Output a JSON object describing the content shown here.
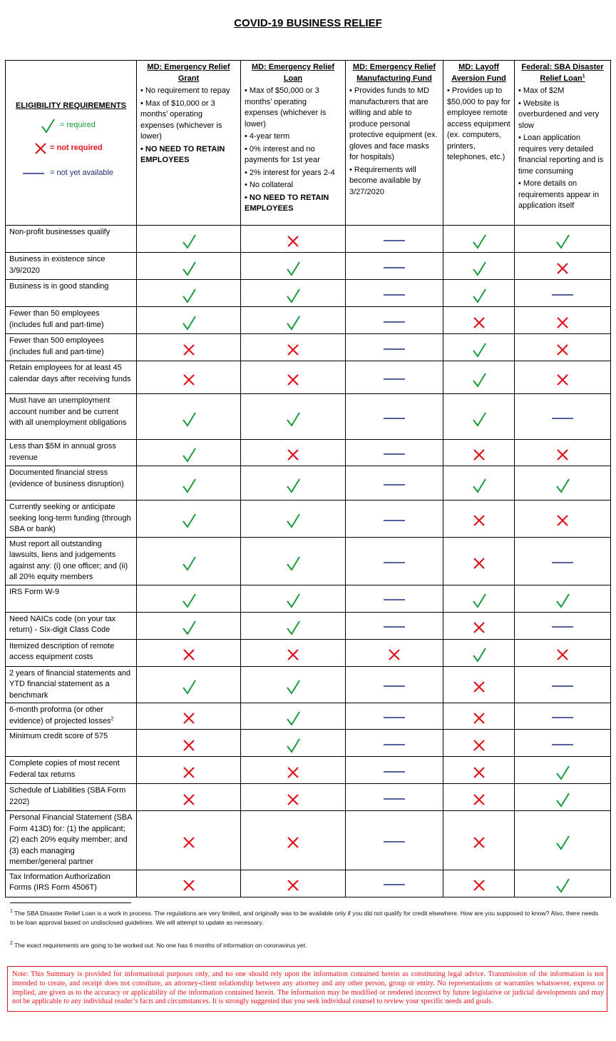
{
  "title": "COVID-19 BUSINESS RELIEF",
  "legend": {
    "heading": "ELIGIBILITY REQUIREMENTS",
    "required": "= required",
    "not_required": "= not required",
    "not_available": "= not yet available"
  },
  "programs": [
    {
      "title1": "MD: Emergency Relief",
      "title2": "Grant",
      "sup": "",
      "bullets": [
        "No requirement to repay",
        "Max of $10,000 or 3 months’ operating expenses (whichever is lower)"
      ],
      "bold_bullet": "NO NEED TO RETAIN EMPLOYEES"
    },
    {
      "title1": "MD: Emergency Relief",
      "title2": "Loan",
      "sup": "",
      "bullets": [
        "Max of $50,000 or 3 months’ operating expenses (whichever is lower)",
        "4-year term",
        "0% interest and no payments for 1st year",
        "2% interest for years 2-4",
        "No collateral"
      ],
      "bold_bullet": "NO NEED TO RETAIN EMPLOYEES"
    },
    {
      "title1": "MD: Emergency Relief",
      "title2": "Manufacturing Fund",
      "sup": "",
      "bullets": [
        "Provides funds to MD manufacturers that are willing and able to produce personal protective equipment (ex. gloves and face masks for hospitals)",
        "Requirements will become available by 3/27/2020"
      ],
      "bold_bullet": ""
    },
    {
      "title1": "MD: Layoff",
      "title2": "Aversion Fund",
      "sup": "",
      "bullets": [
        "Provides up to $50,000 to pay for employee remote access equipment (ex. computers, printers, telephones, etc.)"
      ],
      "bold_bullet": ""
    },
    {
      "title1": "Federal: SBA Disaster",
      "title2": "Relief Loan",
      "sup": "1",
      "bullets": [
        "Max of $2M",
        "Website is overburdened and very slow",
        "Loan application requires very detailed financial reporting and is time consuming",
        "More details on requirements appear in application itself"
      ],
      "bold_bullet": ""
    }
  ],
  "rows": [
    {
      "label": "Non-profit businesses qualify",
      "marks": [
        "check",
        "x",
        "dash",
        "check",
        "check"
      ]
    },
    {
      "label": "Business in existence since 3/9/2020",
      "marks": [
        "check",
        "check",
        "dash",
        "check",
        "x"
      ]
    },
    {
      "label": "Business is in good standing",
      "marks": [
        "check",
        "check",
        "dash",
        "check",
        "dash"
      ]
    },
    {
      "label": "Fewer than 50 employees (includes full and part-time)",
      "marks": [
        "check",
        "check",
        "dash",
        "x",
        "x"
      ]
    },
    {
      "label": "Fewer than 500 employees (includes full and part-time)",
      "marks": [
        "x",
        "x",
        "dash",
        "check",
        "x"
      ]
    },
    {
      "label": "Retain employees for at least 45 calendar days after receiving funds",
      "marks": [
        "x",
        "x",
        "dash",
        "check",
        "x"
      ]
    },
    {
      "label": "Must have an unemployment account number and be current with all unemployment obligations",
      "marks": [
        "check",
        "check",
        "dash",
        "check",
        "dash"
      ]
    },
    {
      "label": "Less than $5M in annual gross revenue",
      "marks": [
        "check",
        "x",
        "dash",
        "x",
        "x"
      ]
    },
    {
      "label": "Documented financial stress (evidence of business disruption)",
      "marks": [
        "check",
        "check",
        "dash",
        "check",
        "check"
      ]
    },
    {
      "label": "Currently seeking or anticipate seeking long-term funding (through SBA or bank)",
      "marks": [
        "check",
        "check",
        "dash",
        "x",
        "x"
      ]
    },
    {
      "label": "Must report all outstanding lawsuits, liens and judgements against any: (i) one officer; and (ii) all 20% equity members",
      "marks": [
        "check",
        "check",
        "dash",
        "x",
        "dash"
      ]
    },
    {
      "label": "IRS Form W-9",
      "marks": [
        "check",
        "check",
        "dash",
        "check",
        "check"
      ]
    },
    {
      "label": "Need NAICs code (on your tax return) - Six-digit Class Code",
      "marks": [
        "check",
        "check",
        "dash",
        "x",
        "dash"
      ]
    },
    {
      "label": "Itemized description of remote access equipment costs",
      "marks": [
        "x",
        "x",
        "x",
        "check",
        "x"
      ]
    },
    {
      "label": "2 years of financial statements and YTD financial statement as a benchmark",
      "marks": [
        "check",
        "check",
        "dash",
        "x",
        "dash"
      ]
    },
    {
      "label": "6-month proforma (or other evidence) of projected losses",
      "sup": "2",
      "marks": [
        "x",
        "check",
        "dash",
        "x",
        "dash"
      ]
    },
    {
      "label": "Minimum credit score of 575",
      "marks": [
        "x",
        "check",
        "dash",
        "x",
        "dash"
      ]
    },
    {
      "label": "Complete copies of most recent Federal tax returns",
      "marks": [
        "x",
        "x",
        "dash",
        "x",
        "check"
      ]
    },
    {
      "label": "Schedule of Liabilities (SBA Form 2202)",
      "marks": [
        "x",
        "x",
        "dash",
        "x",
        "check"
      ]
    },
    {
      "label": "Personal Financial Statement (SBA Form 413D) for: (1) the applicant; (2) each 20% equity member; and (3) each managing member/general partner",
      "marks": [
        "x",
        "x",
        "dash",
        "x",
        "check"
      ]
    },
    {
      "label": "Tax Information Authorization Forms (IRS Form 4506T)",
      "marks": [
        "x",
        "x",
        "dash",
        "x",
        "check"
      ]
    }
  ],
  "footnotes": {
    "fn1": "The SBA Disaster Relief Loan is a work in process.  The regulations are very limited, and originally was to be available only if you did not qualify for credit elsewhere.  How are you supposed to know? Also, there needs to be loan approval based on undisclosed guidelines.  We will attempt to update as necessary.",
    "fn2": "The exact requirements are going to be worked out.  No one has 6 months of information on coronavirus yet.",
    "fn1_mark": "1",
    "fn2_mark": "2"
  },
  "disclaimer": "Note: This Summary is provided for informational purposes only, and no one should rely upon the information contained herein as constituting legal advice. Transmission of the information is not intended to create, and receipt does not constitute, an attorney-client relationship between any attorney and any other person, group or entity. No representations or warranties whatsoever, express or implied, are given as to the accuracy or applicability of the information contained herein. The information may be modified or rendered incorrect by future legislative or judicial developments and may not be applicable to any individual reader’s facts and circumstances. It is strongly suggested that you seek individual counsel to review your specific needs and goals.",
  "colors": {
    "check": "#1a9a3a",
    "x": "#e0141e",
    "dash": "#1f2f7a"
  }
}
